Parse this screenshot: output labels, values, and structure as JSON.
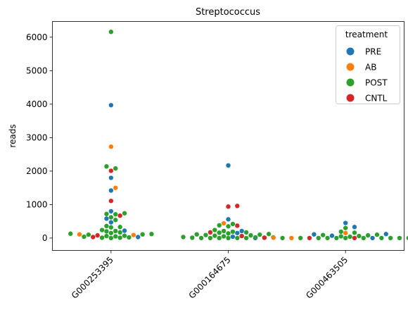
{
  "chart_data": {
    "type": "scatter",
    "subtype": "swarm",
    "title": "Streptococcus",
    "xlabel": "",
    "ylabel": "reads",
    "categories": [
      "G000253395",
      "G000164675",
      "G000463505"
    ],
    "yticks": [
      0,
      1000,
      2000,
      3000,
      4000,
      5000,
      6000
    ],
    "ylim": [
      -370,
      6470
    ],
    "grid": false,
    "legend": {
      "title": "treatment",
      "placement": "top-right",
      "entries": [
        {
          "label": "PRE",
          "color": "#1f77b4"
        },
        {
          "label": "AB",
          "color": "#ff7f0e"
        },
        {
          "label": "POST",
          "color": "#2ca02c"
        },
        {
          "label": "CNTL",
          "color": "#d62728"
        }
      ]
    },
    "series": [
      {
        "category": "G000253395",
        "points": [
          {
            "t": "POST",
            "y": 6160
          },
          {
            "t": "PRE",
            "y": 3970
          },
          {
            "t": "AB",
            "y": 2730
          },
          {
            "t": "POST",
            "y": 2140
          },
          {
            "t": "POST",
            "y": 2080
          },
          {
            "t": "CNTL",
            "y": 2010
          },
          {
            "t": "PRE",
            "y": 1800
          },
          {
            "t": "AB",
            "y": 1500
          },
          {
            "t": "PRE",
            "y": 1420
          },
          {
            "t": "CNTL",
            "y": 1110
          },
          {
            "t": "PRE",
            "y": 800
          },
          {
            "t": "POST",
            "y": 740
          },
          {
            "t": "POST",
            "y": 720
          },
          {
            "t": "POST",
            "y": 710
          },
          {
            "t": "CNTL",
            "y": 670
          },
          {
            "t": "POST",
            "y": 620
          },
          {
            "t": "PRE",
            "y": 580
          },
          {
            "t": "POST",
            "y": 540
          },
          {
            "t": "PRE",
            "y": 470
          },
          {
            "t": "POST",
            "y": 360
          },
          {
            "t": "POST",
            "y": 330
          },
          {
            "t": "POST",
            "y": 320
          },
          {
            "t": "POST",
            "y": 240
          },
          {
            "t": "PRE",
            "y": 220
          },
          {
            "t": "POST",
            "y": 210
          },
          {
            "t": "POST",
            "y": 200
          },
          {
            "t": "POST",
            "y": 170
          },
          {
            "t": "POST",
            "y": 150
          },
          {
            "t": "POST",
            "y": 130
          },
          {
            "t": "POST",
            "y": 120
          },
          {
            "t": "POST",
            "y": 110
          },
          {
            "t": "AB",
            "y": 110
          },
          {
            "t": "POST",
            "y": 100
          },
          {
            "t": "AB",
            "y": 90
          },
          {
            "t": "CNTL",
            "y": 80
          },
          {
            "t": "POST",
            "y": 70
          },
          {
            "t": "POST",
            "y": 60
          },
          {
            "t": "POST",
            "y": 50
          },
          {
            "t": "POST",
            "y": 40
          },
          {
            "t": "CNTL",
            "y": 30
          },
          {
            "t": "PRE",
            "y": 30
          },
          {
            "t": "POST",
            "y": 20
          },
          {
            "t": "POST",
            "y": 10
          },
          {
            "t": "POST",
            "y": 10
          },
          {
            "t": "POST",
            "y": 0
          }
        ]
      },
      {
        "category": "G000164675",
        "points": [
          {
            "t": "PRE",
            "y": 2170
          },
          {
            "t": "CNTL",
            "y": 960
          },
          {
            "t": "CNTL",
            "y": 940
          },
          {
            "t": "PRE",
            "y": 560
          },
          {
            "t": "AB",
            "y": 440
          },
          {
            "t": "POST",
            "y": 420
          },
          {
            "t": "POST",
            "y": 380
          },
          {
            "t": "CNTL",
            "y": 370
          },
          {
            "t": "POST",
            "y": 350
          },
          {
            "t": "POST",
            "y": 240
          },
          {
            "t": "POST",
            "y": 210
          },
          {
            "t": "PRE",
            "y": 210
          },
          {
            "t": "POST",
            "y": 190
          },
          {
            "t": "POST",
            "y": 170
          },
          {
            "t": "CNTL",
            "y": 170
          },
          {
            "t": "POST",
            "y": 160
          },
          {
            "t": "PRE",
            "y": 150
          },
          {
            "t": "POST",
            "y": 140
          },
          {
            "t": "POST",
            "y": 120
          },
          {
            "t": "POST",
            "y": 110
          },
          {
            "t": "POST",
            "y": 100
          },
          {
            "t": "POST",
            "y": 90
          },
          {
            "t": "POST",
            "y": 80
          },
          {
            "t": "POST",
            "y": 70
          },
          {
            "t": "CNTL",
            "y": 60
          },
          {
            "t": "POST",
            "y": 50
          },
          {
            "t": "PRE",
            "y": 40
          },
          {
            "t": "POST",
            "y": 30
          },
          {
            "t": "POST",
            "y": 20
          },
          {
            "t": "POST",
            "y": 10
          },
          {
            "t": "POST",
            "y": 10
          },
          {
            "t": "POST",
            "y": 0
          },
          {
            "t": "POST",
            "y": 0
          },
          {
            "t": "POST",
            "y": 0
          },
          {
            "t": "POST",
            "y": 0
          },
          {
            "t": "POST",
            "y": 0
          },
          {
            "t": "PRE",
            "y": 0
          },
          {
            "t": "POST",
            "y": 0
          }
        ]
      },
      {
        "category": "G000463505",
        "points": [
          {
            "t": "PRE",
            "y": 450
          },
          {
            "t": "PRE",
            "y": 330
          },
          {
            "t": "POST",
            "y": 300
          },
          {
            "t": "POST",
            "y": 190
          },
          {
            "t": "POST",
            "y": 160
          },
          {
            "t": "AB",
            "y": 150
          },
          {
            "t": "PRE",
            "y": 120
          },
          {
            "t": "PRE",
            "y": 110
          },
          {
            "t": "POST",
            "y": 100
          },
          {
            "t": "POST",
            "y": 90
          },
          {
            "t": "POST",
            "y": 80
          },
          {
            "t": "PRE",
            "y": 70
          },
          {
            "t": "POST",
            "y": 60
          },
          {
            "t": "POST",
            "y": 50
          },
          {
            "t": "POST",
            "y": 40
          },
          {
            "t": "POST",
            "y": 30
          },
          {
            "t": "AB",
            "y": 20
          },
          {
            "t": "POST",
            "y": 20
          },
          {
            "t": "POST",
            "y": 10
          },
          {
            "t": "AB",
            "y": 10
          },
          {
            "t": "PRE",
            "y": 10
          },
          {
            "t": "CNTL",
            "y": 10
          },
          {
            "t": "POST",
            "y": 0
          },
          {
            "t": "CNTL",
            "y": 0
          },
          {
            "t": "POST",
            "y": 0
          },
          {
            "t": "POST",
            "y": 0
          },
          {
            "t": "POST",
            "y": 0
          },
          {
            "t": "PRE",
            "y": 0
          },
          {
            "t": "POST",
            "y": 0
          },
          {
            "t": "POST",
            "y": 0
          },
          {
            "t": "CNTL",
            "y": 0
          },
          {
            "t": "POST",
            "y": 0
          },
          {
            "t": "POST",
            "y": 0
          },
          {
            "t": "POST",
            "y": 0
          },
          {
            "t": "AB",
            "y": 0
          },
          {
            "t": "POST",
            "y": 0
          },
          {
            "t": "POST",
            "y": 0
          }
        ]
      }
    ]
  }
}
